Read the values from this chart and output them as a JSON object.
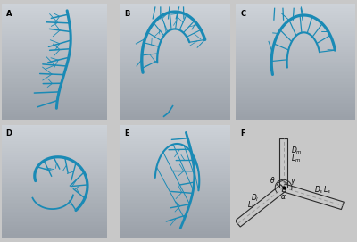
{
  "bg_color": "#c8c8c8",
  "panel_bg_top": "#d0d0d0",
  "panel_bg_bottom": "#a8a8a8",
  "artery_color": "#1a8ab5",
  "artery_color2": "#2090c0",
  "diagram_line_color": "#2a2a2a",
  "diagram_dashed_color": "#999999",
  "panel_label_fontsize": 6,
  "figsize": [
    4.0,
    2.71
  ],
  "dpi": 100,
  "panel_positions": {
    "A": [
      0.005,
      0.505,
      0.295,
      0.475
    ],
    "B": [
      0.335,
      0.505,
      0.31,
      0.475
    ],
    "C": [
      0.66,
      0.505,
      0.335,
      0.475
    ],
    "D": [
      0.005,
      0.02,
      0.295,
      0.465
    ],
    "E": [
      0.335,
      0.02,
      0.31,
      0.465
    ],
    "F": [
      0.66,
      0.02,
      0.335,
      0.465
    ]
  }
}
